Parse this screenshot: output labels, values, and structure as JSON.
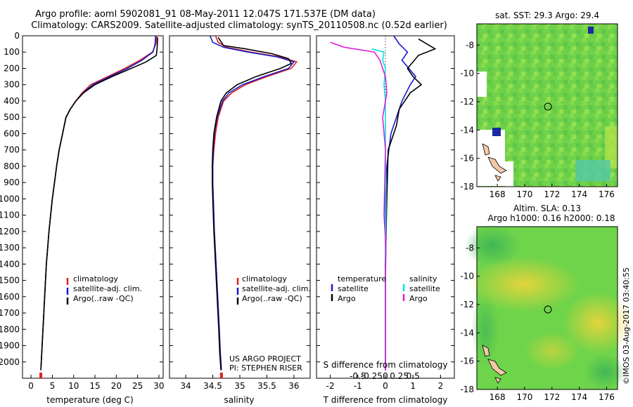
{
  "header": {
    "line1": "Argo profile: aoml 5902081_91 08-May-2011 12.047S 171.537E (DM data)",
    "line2": "Climatology: CARS2009. Satellite-adjusted climatology: synTS_20110508.nc (0.52d earlier)"
  },
  "credits": {
    "project": "US ARGO PROJECT",
    "pi": "PI: STEPHEN RISER"
  },
  "stamp": "©IMOS 03-Aug-2017 03:40:55",
  "colors": {
    "climatology": "#e0201b",
    "satellite": "#1a1acc",
    "argo": "#000000",
    "sal_satellite": "#00e5e5",
    "sal_argo": "#e020d8",
    "map_green": "#6ed44a",
    "map_land": "#f2c8a8"
  },
  "chart_data": [
    {
      "type": "line",
      "name": "temperature profile",
      "xlabel": "temperature (deg C)",
      "ylabel": "",
      "xlim": [
        -2,
        31
      ],
      "ylim": [
        2100,
        0
      ],
      "xticks": [
        0,
        5,
        10,
        15,
        20,
        25,
        30
      ],
      "xtick_labels": [
        "0",
        "5",
        "10",
        "15",
        "20",
        "25",
        "30"
      ],
      "yticks": [
        0,
        100,
        200,
        300,
        400,
        500,
        600,
        700,
        800,
        900,
        1000,
        1100,
        1200,
        1300,
        1400,
        1500,
        1600,
        1700,
        1800,
        1900,
        2000
      ],
      "ytick_labels": [
        "0",
        "100",
        "200",
        "300",
        "400",
        "500",
        "600",
        "700",
        "800",
        "900",
        "1000",
        "1100",
        "1200",
        "1300",
        "1400",
        "1500",
        "1600",
        "1700",
        "1800",
        "1900",
        "2000"
      ],
      "legend": [
        "climatology",
        "satellite-adj. clim.",
        "Argo(..raw -QC)"
      ],
      "legend_position": "bottom-left",
      "series": [
        {
          "name": "climatology",
          "color_key": "climatology",
          "points": [
            [
              29.5,
              0
            ],
            [
              29.3,
              50
            ],
            [
              28.5,
              100
            ],
            [
              25.5,
              150
            ],
            [
              22,
              200
            ],
            [
              18,
              250
            ],
            [
              14,
              300
            ],
            [
              12,
              350
            ],
            [
              10.5,
              400
            ],
            [
              9.2,
              450
            ],
            [
              8.2,
              500
            ],
            [
              7.4,
              600
            ],
            [
              6.6,
              700
            ],
            [
              6.0,
              800
            ],
            [
              5.5,
              900
            ],
            [
              5.0,
              1000
            ],
            [
              4.6,
              1100
            ],
            [
              4.2,
              1200
            ],
            [
              3.9,
              1300
            ],
            [
              3.6,
              1400
            ],
            [
              3.4,
              1500
            ],
            [
              3.2,
              1600
            ],
            [
              3.0,
              1700
            ],
            [
              2.8,
              1800
            ],
            [
              2.6,
              1900
            ],
            [
              2.4,
              2000
            ],
            [
              2.3,
              2050
            ]
          ]
        },
        {
          "name": "satellite-adj. clim.",
          "color_key": "satellite",
          "points": [
            [
              29.2,
              0
            ],
            [
              29.1,
              50
            ],
            [
              28.6,
              100
            ],
            [
              26,
              150
            ],
            [
              22.6,
              200
            ],
            [
              18.5,
              250
            ],
            [
              14.5,
              300
            ],
            [
              12.2,
              350
            ],
            [
              10.5,
              400
            ],
            [
              9.2,
              450
            ],
            [
              8.2,
              500
            ],
            [
              7.4,
              600
            ],
            [
              6.6,
              700
            ],
            [
              6.0,
              800
            ],
            [
              5.5,
              900
            ],
            [
              5.0,
              1000
            ],
            [
              4.6,
              1100
            ],
            [
              4.2,
              1200
            ],
            [
              3.9,
              1300
            ],
            [
              3.6,
              1400
            ],
            [
              3.4,
              1500
            ],
            [
              3.2,
              1600
            ],
            [
              3.0,
              1700
            ],
            [
              2.8,
              1800
            ],
            [
              2.6,
              1900
            ],
            [
              2.4,
              2000
            ],
            [
              2.3,
              2050
            ]
          ]
        },
        {
          "name": "Argo(..raw -QC)",
          "color_key": "argo",
          "points": [
            [
              29.7,
              10
            ],
            [
              29.6,
              70
            ],
            [
              29.4,
              120
            ],
            [
              27,
              160
            ],
            [
              23.5,
              200
            ],
            [
              19,
              250
            ],
            [
              15,
              300
            ],
            [
              12.3,
              350
            ],
            [
              10.5,
              400
            ],
            [
              9.2,
              450
            ],
            [
              8.2,
              500
            ],
            [
              7.4,
              600
            ],
            [
              6.6,
              700
            ],
            [
              6.0,
              800
            ],
            [
              5.5,
              900
            ],
            [
              5.0,
              1000
            ],
            [
              4.6,
              1100
            ],
            [
              4.2,
              1200
            ],
            [
              3.9,
              1300
            ],
            [
              3.6,
              1400
            ],
            [
              3.4,
              1500
            ],
            [
              3.2,
              1600
            ],
            [
              3.0,
              1700
            ],
            [
              2.8,
              1800
            ],
            [
              2.6,
              1900
            ],
            [
              2.4,
              2000
            ],
            [
              2.3,
              2050
            ]
          ]
        }
      ]
    },
    {
      "type": "line",
      "name": "salinity profile",
      "xlabel": "salinity",
      "xlim": [
        33.7,
        36.3
      ],
      "ylim": [
        2100,
        0
      ],
      "xticks": [
        34,
        34.5,
        35,
        35.5,
        36
      ],
      "xtick_labels": [
        "34",
        "34.5",
        "35",
        "35.5",
        "36"
      ],
      "legend": [
        "climatology",
        "satellite-adj. clim.",
        "Argo(..raw -QC)"
      ],
      "legend_position": "bottom-right",
      "series": [
        {
          "name": "climatology",
          "color_key": "climatology",
          "points": [
            [
              34.55,
              0
            ],
            [
              34.6,
              40
            ],
            [
              34.75,
              70
            ],
            [
              35.2,
              100
            ],
            [
              35.75,
              130
            ],
            [
              36.05,
              160
            ],
            [
              35.95,
              200
            ],
            [
              35.5,
              250
            ],
            [
              35.1,
              300
            ],
            [
              34.85,
              350
            ],
            [
              34.7,
              400
            ],
            [
              34.6,
              500
            ],
            [
              34.55,
              600
            ],
            [
              34.52,
              700
            ],
            [
              34.5,
              800
            ],
            [
              34.5,
              900
            ],
            [
              34.51,
              1000
            ],
            [
              34.53,
              1200
            ],
            [
              34.56,
              1400
            ],
            [
              34.59,
              1600
            ],
            [
              34.62,
              1800
            ],
            [
              34.64,
              1950
            ],
            [
              34.66,
              2050
            ]
          ]
        },
        {
          "name": "satellite-adj. clim.",
          "color_key": "satellite",
          "points": [
            [
              34.45,
              0
            ],
            [
              34.5,
              40
            ],
            [
              34.7,
              70
            ],
            [
              35.15,
              100
            ],
            [
              35.7,
              130
            ],
            [
              36.0,
              160
            ],
            [
              35.9,
              200
            ],
            [
              35.45,
              250
            ],
            [
              35.05,
              300
            ],
            [
              34.8,
              350
            ],
            [
              34.68,
              400
            ],
            [
              34.58,
              500
            ],
            [
              34.53,
              600
            ],
            [
              34.51,
              700
            ],
            [
              34.5,
              800
            ],
            [
              34.5,
              900
            ],
            [
              34.51,
              1000
            ],
            [
              34.53,
              1200
            ],
            [
              34.56,
              1400
            ],
            [
              34.59,
              1600
            ],
            [
              34.62,
              1800
            ],
            [
              34.64,
              1950
            ],
            [
              34.66,
              2050
            ]
          ]
        },
        {
          "name": "Argo(..raw -QC)",
          "color_key": "argo",
          "points": [
            [
              34.6,
              10
            ],
            [
              34.7,
              60
            ],
            [
              35.1,
              80
            ],
            [
              35.6,
              110
            ],
            [
              35.9,
              140
            ],
            [
              35.95,
              170
            ],
            [
              35.75,
              200
            ],
            [
              35.3,
              250
            ],
            [
              34.95,
              300
            ],
            [
              34.75,
              350
            ],
            [
              34.65,
              400
            ],
            [
              34.57,
              500
            ],
            [
              34.52,
              600
            ],
            [
              34.5,
              700
            ],
            [
              34.49,
              800
            ],
            [
              34.49,
              900
            ],
            [
              34.5,
              1000
            ],
            [
              34.52,
              1200
            ],
            [
              34.55,
              1400
            ],
            [
              34.58,
              1600
            ],
            [
              34.61,
              1800
            ],
            [
              34.63,
              1950
            ],
            [
              34.65,
              2050
            ]
          ]
        }
      ]
    },
    {
      "type": "line",
      "name": "difference from climatology",
      "xlabel": "T difference from climatology",
      "xlabel_top": "S difference from climatology",
      "xlim": [
        -2.5,
        2.5
      ],
      "ylim": [
        2100,
        0
      ],
      "xticks": [
        -2,
        -1,
        0,
        1,
        2
      ],
      "xtick_labels": [
        "-2",
        "-1",
        "0",
        "1",
        "2"
      ],
      "sticks": [
        -0.5,
        -0.25,
        0,
        0.25,
        0.5
      ],
      "stick_labels": [
        "-0.5",
        "-0.25",
        "0",
        "0.25",
        "0.5"
      ],
      "legend_temperature_title": "temperature",
      "legend_salinity_title": "salinity",
      "legend_temperature": [
        "satellite",
        "Argo"
      ],
      "legend_salinity": [
        "satellite",
        "Argo"
      ],
      "series": [
        {
          "name": "T satellite",
          "color_key": "satellite",
          "points": [
            [
              0.3,
              0
            ],
            [
              0.5,
              50
            ],
            [
              0.8,
              100
            ],
            [
              0.6,
              150
            ],
            [
              1.1,
              250
            ],
            [
              0.9,
              300
            ],
            [
              0.6,
              400
            ],
            [
              0.2,
              600
            ],
            [
              0.05,
              800
            ],
            [
              0.0,
              1000
            ],
            [
              0.0,
              1400
            ],
            [
              0.0,
              2050
            ]
          ]
        },
        {
          "name": "T Argo",
          "color_key": "argo",
          "points": [
            [
              1.2,
              20
            ],
            [
              1.8,
              80
            ],
            [
              1.2,
              120
            ],
            [
              0.8,
              200
            ],
            [
              1.0,
              250
            ],
            [
              1.3,
              300
            ],
            [
              0.9,
              350
            ],
            [
              0.5,
              450
            ],
            [
              0.4,
              550
            ],
            [
              0.1,
              700
            ],
            [
              0.05,
              1000
            ],
            [
              0.0,
              1400
            ],
            [
              0.0,
              2050
            ]
          ]
        },
        {
          "name": "S satellite",
          "color_key": "sal_satellite",
          "points": [
            [
              -0.5,
              80
            ],
            [
              -0.05,
              100
            ],
            [
              -0.1,
              150
            ],
            [
              0.0,
              200
            ],
            [
              -0.05,
              300
            ],
            [
              0.0,
              400
            ],
            [
              0.0,
              700
            ],
            [
              0.02,
              1000
            ],
            [
              0.0,
              1500
            ],
            [
              0.0,
              2050
            ]
          ]
        },
        {
          "name": "S Argo",
          "color_key": "sal_argo",
          "points": [
            [
              -2.0,
              40
            ],
            [
              -1.5,
              70
            ],
            [
              -0.4,
              100
            ],
            [
              -0.2,
              150
            ],
            [
              0.0,
              250
            ],
            [
              0.05,
              350
            ],
            [
              -0.1,
              500
            ],
            [
              0.0,
              700
            ],
            [
              -0.05,
              1100
            ],
            [
              0.02,
              1300
            ],
            [
              0.0,
              1500
            ],
            [
              0.0,
              2050
            ]
          ]
        }
      ]
    },
    {
      "type": "heatmap",
      "name": "sea surface temperature map",
      "title": "sat. SST: 29.3 Argo: 29.4",
      "xlim": [
        166.5,
        176.8
      ],
      "ylim": [
        -18,
        -6.5
      ],
      "xticks": [
        168,
        170,
        172,
        174,
        176
      ],
      "yticks": [
        -8,
        -10,
        -12,
        -14,
        -16,
        -18
      ],
      "xtick_labels": [
        "168",
        "170",
        "172",
        "174",
        "176"
      ],
      "ytick_labels": [
        "-8",
        "-10",
        "-12",
        "-14",
        "-16",
        "-18"
      ],
      "marker": {
        "lon": 171.537,
        "lat": -12.047
      }
    },
    {
      "type": "heatmap",
      "name": "altimetry sea level anomaly map",
      "title": "Altim. SLA: 0.13",
      "subtitle": "Argo h1000: 0.16 h2000: 0.18",
      "xlim": [
        166.5,
        176.8
      ],
      "ylim": [
        -18,
        -6.5
      ],
      "xticks": [
        168,
        170,
        172,
        174,
        176
      ],
      "yticks": [
        -8,
        -10,
        -12,
        -14,
        -16,
        -18
      ],
      "xtick_labels": [
        "168",
        "170",
        "172",
        "174",
        "176"
      ],
      "ytick_labels": [
        "-8",
        "-10",
        "-12",
        "-14",
        "-16",
        "-18"
      ],
      "marker": {
        "lon": 171.537,
        "lat": -12.047
      }
    }
  ]
}
